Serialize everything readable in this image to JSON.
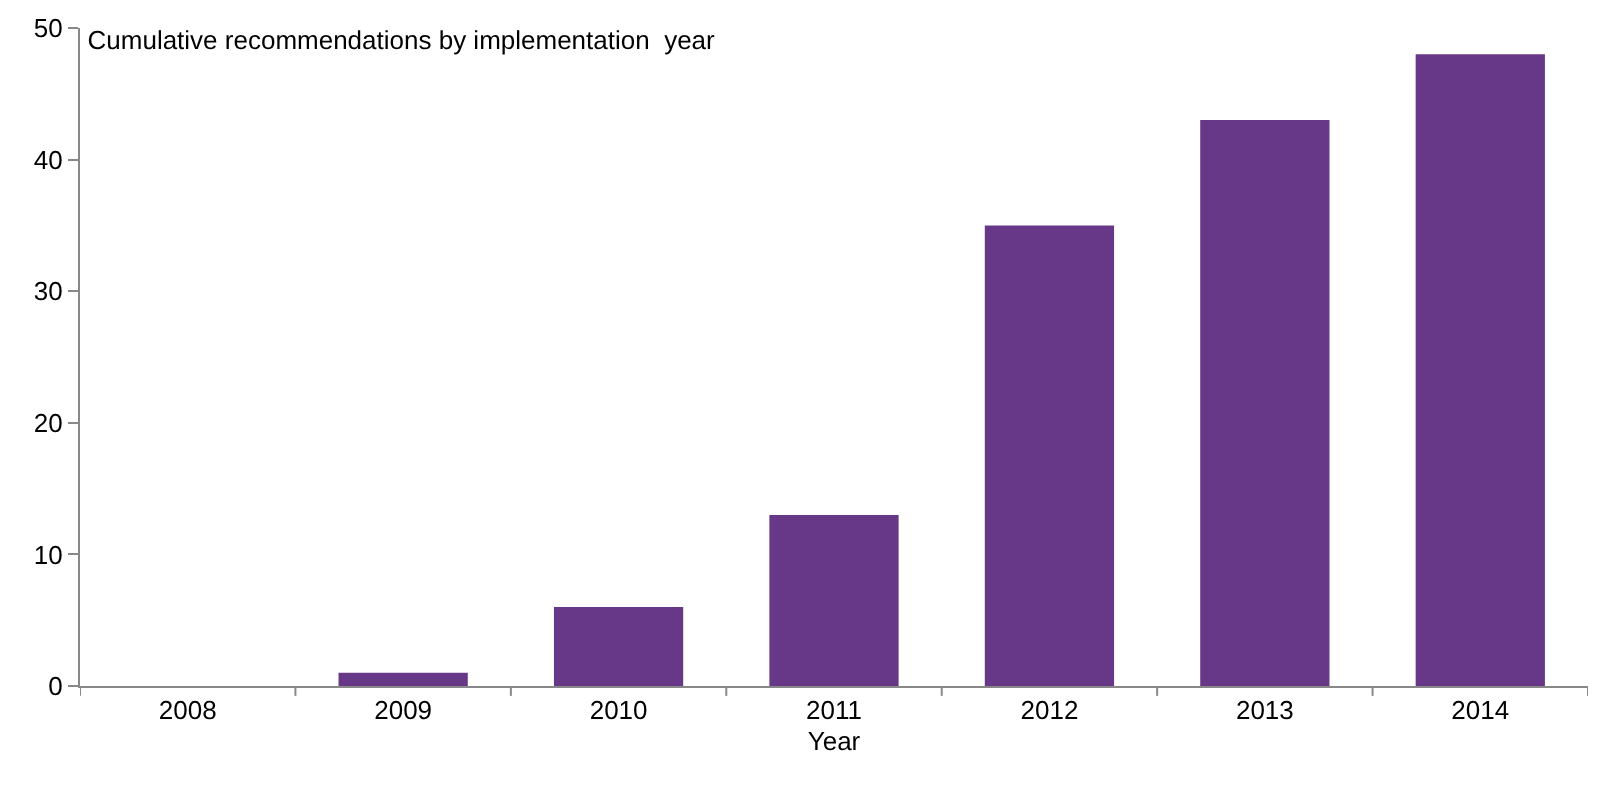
{
  "chart_data": {
    "type": "bar",
    "title": "Cumulative recommendations by implementation  year",
    "xlabel": "Year",
    "categories": [
      "2008",
      "2009",
      "2010",
      "2011",
      "2012",
      "2013",
      "2014"
    ],
    "values": [
      0,
      1,
      6,
      13,
      35,
      43,
      48
    ],
    "color": "#663887",
    "ylim": [
      0,
      50
    ],
    "yticks": [
      0,
      10,
      20,
      30,
      40,
      50
    ],
    "grid": false,
    "legend": false
  }
}
